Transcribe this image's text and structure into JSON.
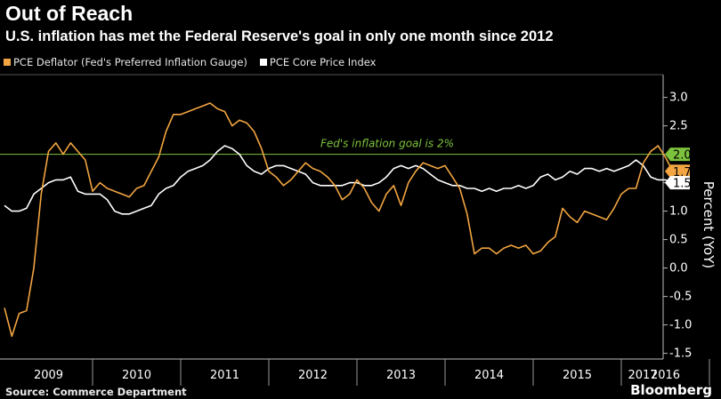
{
  "header": {
    "title": "Out of Reach",
    "subtitle": "U.S. inflation has met the Federal Reserve's goal in only one month since 2012"
  },
  "source": "Source: Commerce Department",
  "brand": "Bloomberg",
  "colors": {
    "pce": "#f2a541",
    "core": "#ffffff",
    "goal": "#7cc23d",
    "background": "#000000"
  },
  "chart_data": {
    "type": "line",
    "title": "Out of Reach",
    "ylabel": "Percent (YoY)",
    "ylim": [
      -1.6,
      3.4
    ],
    "yticks": [
      3.0,
      2.5,
      2.0,
      1.5,
      1.0,
      0.5,
      0.0,
      -0.5,
      -1.0,
      -1.5
    ],
    "ytick_labels": [
      "3.0",
      "2.5",
      "2.0",
      "1.5",
      "1.0",
      "0.5",
      "0.0",
      "-0.5",
      "-1.0",
      "-1.5"
    ],
    "years": [
      "2009",
      "2010",
      "2011",
      "2012",
      "2013",
      "2014",
      "2015",
      "2016",
      "2017"
    ],
    "grid": false,
    "legend_position": "top-left",
    "annotations": [
      {
        "text": "Fed's inflation goal is 2%",
        "y": 2.0
      }
    ],
    "end_labels": [
      {
        "text": "2.0",
        "series": "goal"
      },
      {
        "text": "1.7",
        "series": "pce"
      },
      {
        "text": "1.5",
        "series": "core"
      }
    ],
    "x_start": "2009-01",
    "series": [
      {
        "name": "PCE Deflator (Fed's Preferred Inflation Gauge)",
        "color": "#f2a541",
        "values": [
          -0.7,
          -1.2,
          -0.8,
          -0.75,
          0.0,
          1.3,
          2.05,
          2.2,
          2.0,
          2.2,
          2.05,
          1.9,
          1.35,
          1.5,
          1.4,
          1.35,
          1.3,
          1.25,
          1.4,
          1.45,
          1.7,
          1.95,
          2.4,
          2.7,
          2.7,
          2.75,
          2.8,
          2.85,
          2.9,
          2.8,
          2.75,
          2.5,
          2.6,
          2.55,
          2.4,
          2.1,
          1.7,
          1.6,
          1.45,
          1.55,
          1.7,
          1.85,
          1.75,
          1.7,
          1.6,
          1.45,
          1.2,
          1.3,
          1.55,
          1.4,
          1.15,
          1.0,
          1.3,
          1.45,
          1.1,
          1.5,
          1.7,
          1.85,
          1.8,
          1.75,
          1.8,
          1.6,
          1.4,
          0.95,
          0.25,
          0.35,
          0.35,
          0.25,
          0.35,
          0.4,
          0.35,
          0.4,
          0.25,
          0.3,
          0.45,
          0.55,
          1.05,
          0.9,
          0.8,
          1.0,
          0.95,
          0.9,
          0.85,
          1.05,
          1.3,
          1.4,
          1.4,
          1.85,
          2.05,
          2.15,
          1.95,
          1.7
        ]
      },
      {
        "name": "PCE Core Price Index",
        "color": "#ffffff",
        "values": [
          1.1,
          1.0,
          1.0,
          1.05,
          1.3,
          1.4,
          1.5,
          1.55,
          1.55,
          1.6,
          1.35,
          1.3,
          1.3,
          1.3,
          1.2,
          1.0,
          0.95,
          0.95,
          1.0,
          1.05,
          1.1,
          1.3,
          1.4,
          1.45,
          1.6,
          1.7,
          1.75,
          1.8,
          1.9,
          2.05,
          2.15,
          2.1,
          2.0,
          1.8,
          1.7,
          1.65,
          1.75,
          1.8,
          1.8,
          1.75,
          1.7,
          1.65,
          1.5,
          1.45,
          1.45,
          1.45,
          1.45,
          1.5,
          1.5,
          1.45,
          1.45,
          1.5,
          1.6,
          1.75,
          1.8,
          1.75,
          1.8,
          1.75,
          1.65,
          1.55,
          1.5,
          1.45,
          1.45,
          1.4,
          1.4,
          1.35,
          1.4,
          1.35,
          1.4,
          1.4,
          1.45,
          1.4,
          1.45,
          1.6,
          1.65,
          1.55,
          1.6,
          1.7,
          1.65,
          1.75,
          1.75,
          1.7,
          1.75,
          1.7,
          1.75,
          1.8,
          1.9,
          1.8,
          1.6,
          1.55,
          1.55,
          1.5
        ]
      }
    ]
  }
}
